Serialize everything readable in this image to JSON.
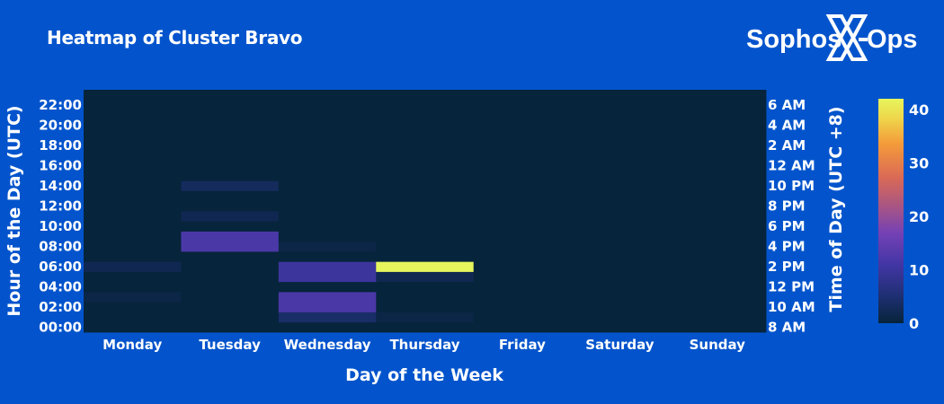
{
  "header": {
    "title": "Heatmap of Cluster Bravo",
    "logo_left": "Sophos",
    "logo_right": "Ops"
  },
  "colors": {
    "background": "#0354CC",
    "plot_background": "#06243B"
  },
  "chart_data": {
    "type": "heatmap",
    "title": "Heatmap of Cluster Bravo",
    "xlabel": "Day of the Week",
    "ylabel": "Hour of the Day (UTC)",
    "y2label": "Time of Day (UTC +8)",
    "categories": [
      "Monday",
      "Tuesday",
      "Wednesday",
      "Thursday",
      "Friday",
      "Saturday",
      "Sunday"
    ],
    "hours": [
      0,
      1,
      2,
      3,
      4,
      5,
      6,
      7,
      8,
      9,
      10,
      11,
      12,
      13,
      14,
      15,
      16,
      17,
      18,
      19,
      20,
      21,
      22,
      23
    ],
    "yticks_left": [
      "00:00",
      "02:00",
      "04:00",
      "06:00",
      "08:00",
      "10:00",
      "12:00",
      "14:00",
      "16:00",
      "18:00",
      "20:00",
      "22:00"
    ],
    "yticks_right": [
      "8 AM",
      "10 AM",
      "12 PM",
      "2 PM",
      "4 PM",
      "6 PM",
      "8 PM",
      "10 PM",
      "12 AM",
      "2 AM",
      "4 AM",
      "6 AM"
    ],
    "colorbar": {
      "min": 0,
      "max": 42,
      "ticks": [
        0,
        10,
        20,
        30,
        40
      ]
    },
    "values": [
      [
        0,
        0,
        0,
        0,
        0,
        0,
        0
      ],
      [
        0,
        0,
        4,
        1,
        0,
        0,
        0
      ],
      [
        0,
        0,
        12,
        0,
        0,
        0,
        0
      ],
      [
        1,
        0,
        12,
        0,
        0,
        0,
        0
      ],
      [
        0,
        0,
        0,
        0,
        0,
        0,
        0
      ],
      [
        0,
        0,
        10,
        2,
        0,
        0,
        0
      ],
      [
        2,
        0,
        10,
        42,
        0,
        0,
        0
      ],
      [
        0,
        0,
        0,
        0,
        0,
        0,
        0
      ],
      [
        0,
        12,
        1,
        0,
        0,
        0,
        0
      ],
      [
        0,
        12,
        0,
        0,
        0,
        0,
        0
      ],
      [
        0,
        0,
        0,
        0,
        0,
        0,
        0
      ],
      [
        0,
        2,
        0,
        0,
        0,
        0,
        0
      ],
      [
        0,
        0,
        0,
        0,
        0,
        0,
        0
      ],
      [
        0,
        0,
        0,
        0,
        0,
        0,
        0
      ],
      [
        0,
        3,
        0,
        0,
        0,
        0,
        0
      ],
      [
        0,
        0,
        0,
        0,
        0,
        0,
        0
      ],
      [
        0,
        0,
        0,
        0,
        0,
        0,
        0
      ],
      [
        0,
        0,
        0,
        0,
        0,
        0,
        0
      ],
      [
        0,
        0,
        0,
        0,
        0,
        0,
        0
      ],
      [
        0,
        0,
        0,
        0,
        0,
        0,
        0
      ],
      [
        0,
        0,
        0,
        0,
        0,
        0,
        0
      ],
      [
        0,
        0,
        0,
        0,
        0,
        0,
        0
      ],
      [
        0,
        0,
        0,
        0,
        0,
        0,
        0
      ],
      [
        0,
        0,
        0,
        0,
        0,
        0,
        0
      ]
    ]
  }
}
